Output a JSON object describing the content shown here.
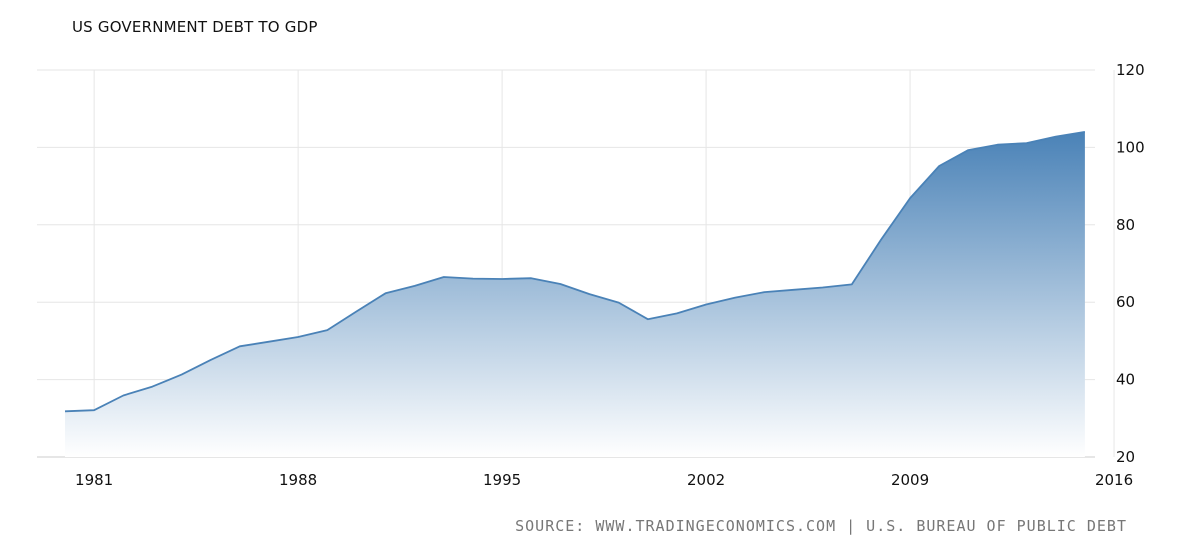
{
  "chart_data": {
    "type": "area",
    "title": "US GOVERNMENT DEBT TO GDP",
    "source": "SOURCE: WWW.TRADINGECONOMICS.COM | U.S. BUREAU OF PUBLIC DEBT",
    "x": [
      1980,
      1981,
      1982,
      1983,
      1984,
      1985,
      1986,
      1987,
      1988,
      1989,
      1990,
      1991,
      1992,
      1993,
      1994,
      1995,
      1996,
      1997,
      1998,
      1999,
      2000,
      2001,
      2002,
      2003,
      2004,
      2005,
      2006,
      2007,
      2008,
      2009,
      2010,
      2011,
      2012,
      2013,
      2014,
      2015
    ],
    "values": [
      31.8,
      32.1,
      35.9,
      38.2,
      41.3,
      45.1,
      48.6,
      49.8,
      51.0,
      52.8,
      57.6,
      62.3,
      64.2,
      66.5,
      66.1,
      66.0,
      66.2,
      64.7,
      62.1,
      59.9,
      55.6,
      57.1,
      59.4,
      61.2,
      62.6,
      63.2,
      63.8,
      64.6,
      76.1,
      86.9,
      95.2,
      99.3,
      100.7,
      101.1,
      102.8,
      104.0
    ],
    "x_ticks": [
      "1981",
      "1988",
      "1995",
      "2002",
      "2009",
      "2016"
    ],
    "x_tick_values": [
      1981,
      1988,
      1995,
      2002,
      2009,
      2016
    ],
    "y_ticks": [
      "20",
      "40",
      "60",
      "80",
      "100",
      "120"
    ],
    "y_tick_values": [
      20,
      40,
      60,
      80,
      100,
      120
    ],
    "xlim": [
      1979,
      2016
    ],
    "ylim": [
      20,
      120
    ],
    "grid": true,
    "colors": {
      "line": "#4a82b7",
      "fill_top": "#4a82b7",
      "fill_bottom": "#ffffff",
      "grid": "#e6e6e6"
    }
  }
}
